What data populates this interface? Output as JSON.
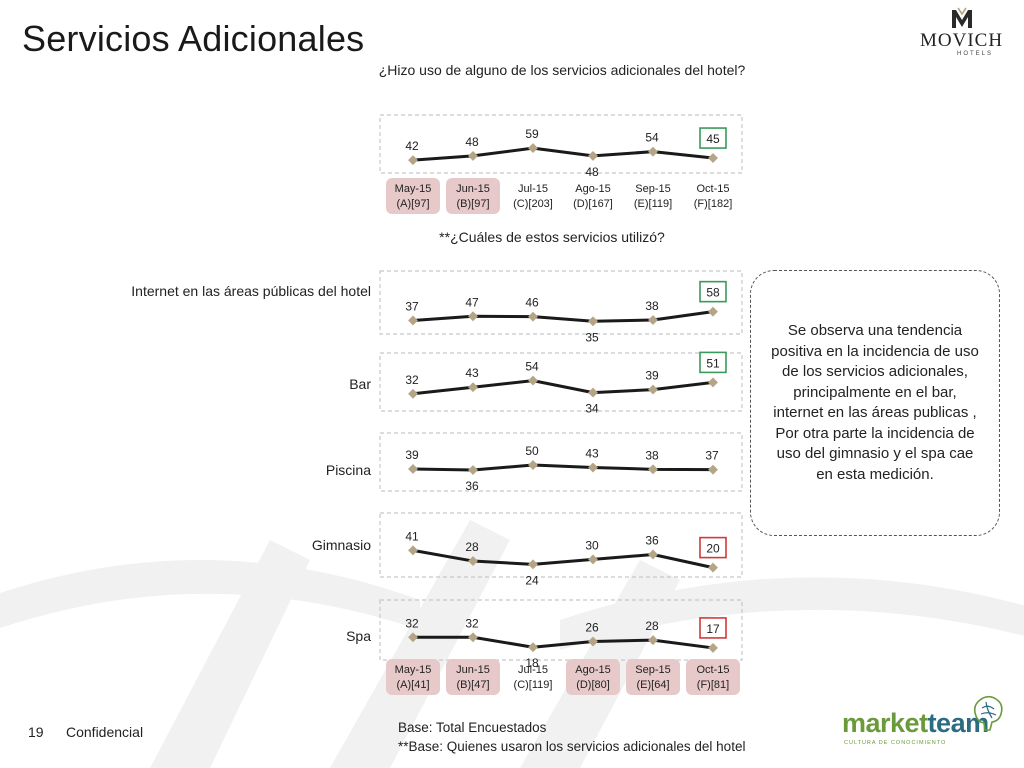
{
  "slide": {
    "title": "Servicios Adicionales",
    "page_number": "19",
    "confidential": "Confidencial",
    "base_line1": "Base: Total Encuestados",
    "base_line2": "**Base: Quienes usaron los servicios adicionales del hotel",
    "logo_text": "MOVICH",
    "logo_subtext": "HOTELS",
    "brand2_part1": "market",
    "brand2_part2": "team",
    "brand2_tagline": "CULTURA DE CONOCIMIENTO"
  },
  "questions": {
    "q1": "¿Hizo uso de alguno de los servicios adicionales del hotel?",
    "q2": "**¿Cuáles de estos servicios utilizó?"
  },
  "note": "Se observa una tendencia positiva en la incidencia de uso de los servicios adicionales, principalmente en el bar, internet en las áreas publicas , Por otra parte la incidencia de uso del gimnasio y el spa cae en esta medición.",
  "colors": {
    "line": "#1a1a1a",
    "marker": "#b5a586",
    "highlight_up": "#3a9a5a",
    "highlight_down": "#d23a3a",
    "highlight_fill": "#e8c9c9",
    "panel_border": "#c8c8c8"
  },
  "chart_data": [
    {
      "type": "line",
      "id": "uso",
      "label": "",
      "categories": [
        "May-15",
        "Jun-15",
        "Jul-15",
        "Ago-15",
        "Sep-15",
        "Oct-15"
      ],
      "base_labels": [
        "(A)[97]",
        "(B)[97]",
        "(C)[203]",
        "(D)[167]",
        "(E)[119]",
        "(F)[182]"
      ],
      "highlight_categories": [
        0,
        1
      ],
      "values": [
        42,
        48,
        59,
        48,
        54,
        45
      ],
      "boxed_point": {
        "index": 5,
        "direction": "up"
      }
    },
    {
      "type": "line",
      "id": "internet",
      "label": "Internet en las áreas públicas del hotel",
      "categories": [
        "May-15",
        "Jun-15",
        "Jul-15",
        "Ago-15",
        "Sep-15",
        "Oct-15"
      ],
      "values": [
        37,
        47,
        46,
        35,
        38,
        58
      ],
      "boxed_point": {
        "index": 5,
        "direction": "up"
      }
    },
    {
      "type": "line",
      "id": "bar",
      "label": "Bar",
      "categories": [
        "May-15",
        "Jun-15",
        "Jul-15",
        "Ago-15",
        "Sep-15",
        "Oct-15"
      ],
      "values": [
        32,
        43,
        54,
        34,
        39,
        51
      ],
      "boxed_point": {
        "index": 5,
        "direction": "up"
      }
    },
    {
      "type": "line",
      "id": "piscina",
      "label": "Piscina",
      "categories": [
        "May-15",
        "Jun-15",
        "Jul-15",
        "Ago-15",
        "Sep-15",
        "Oct-15"
      ],
      "values": [
        39,
        36,
        50,
        43,
        38,
        37
      ],
      "boxed_point": null
    },
    {
      "type": "line",
      "id": "gimnasio",
      "label": "Gimnasio",
      "categories": [
        "May-15",
        "Jun-15",
        "Jul-15",
        "Ago-15",
        "Sep-15",
        "Oct-15"
      ],
      "values": [
        41,
        28,
        24,
        30,
        36,
        20
      ],
      "boxed_point": {
        "index": 5,
        "direction": "down"
      }
    },
    {
      "type": "line",
      "id": "spa",
      "label": "Spa",
      "categories": [
        "May-15",
        "Jun-15",
        "Jul-15",
        "Ago-15",
        "Sep-15",
        "Oct-15"
      ],
      "base_labels": [
        "(A)[41]",
        "(B)[47]",
        "(C)[119]",
        "(D)[80]",
        "(E)[64]",
        "(F)[81]"
      ],
      "highlight_categories": [
        0,
        1,
        3,
        4,
        5
      ],
      "values": [
        32,
        32,
        18,
        26,
        28,
        17
      ],
      "boxed_point": {
        "index": 5,
        "direction": "down"
      }
    }
  ]
}
